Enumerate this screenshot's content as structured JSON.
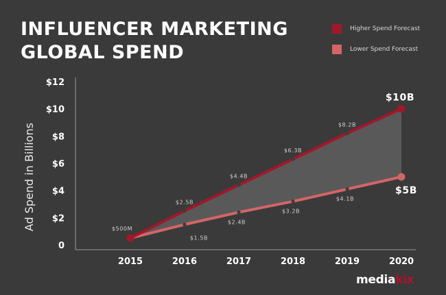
{
  "header": {
    "title_line1": "INFLUENCER MARKETING",
    "title_line2": "GLOBAL SPEND"
  },
  "legend": [
    {
      "label": "Higher Spend Forecast",
      "color": "#a3172a"
    },
    {
      "label": "Lower Spend Forecast",
      "color": "#d46565"
    }
  ],
  "branding": {
    "logo_main": "media",
    "logo_accent": "kix"
  },
  "chart_data": {
    "type": "line",
    "title": "INFLUENCER MARKETING GLOBAL SPEND",
    "ylabel": "Ad Spend in Billions",
    "xlabel": "",
    "ylim": [
      0,
      12
    ],
    "y_ticks": [
      "0",
      "$2",
      "$4",
      "$6",
      "$8",
      "$10",
      "$12"
    ],
    "x": [
      "2015",
      "2016",
      "2017",
      "2018",
      "2019",
      "2020"
    ],
    "legend_position": "top-right",
    "grid": false,
    "series": [
      {
        "name": "Higher Spend Forecast",
        "color": "#a3172a",
        "values": [
          0.5,
          2.5,
          4.4,
          6.3,
          8.2,
          10
        ],
        "labels": [
          "$500M",
          "$2.5B",
          "$4.4B",
          "$6.3B",
          "$8.2B",
          "$10B"
        ]
      },
      {
        "name": "Lower Spend Forecast",
        "color": "#d46565",
        "values": [
          0.5,
          1.5,
          2.4,
          3.2,
          4.1,
          5
        ],
        "labels": [
          "",
          "$1.5B",
          "$2.4B",
          "$3.2B",
          "$4.1B",
          "$5B"
        ]
      }
    ],
    "fill_between_color": "#5b5b5b"
  }
}
